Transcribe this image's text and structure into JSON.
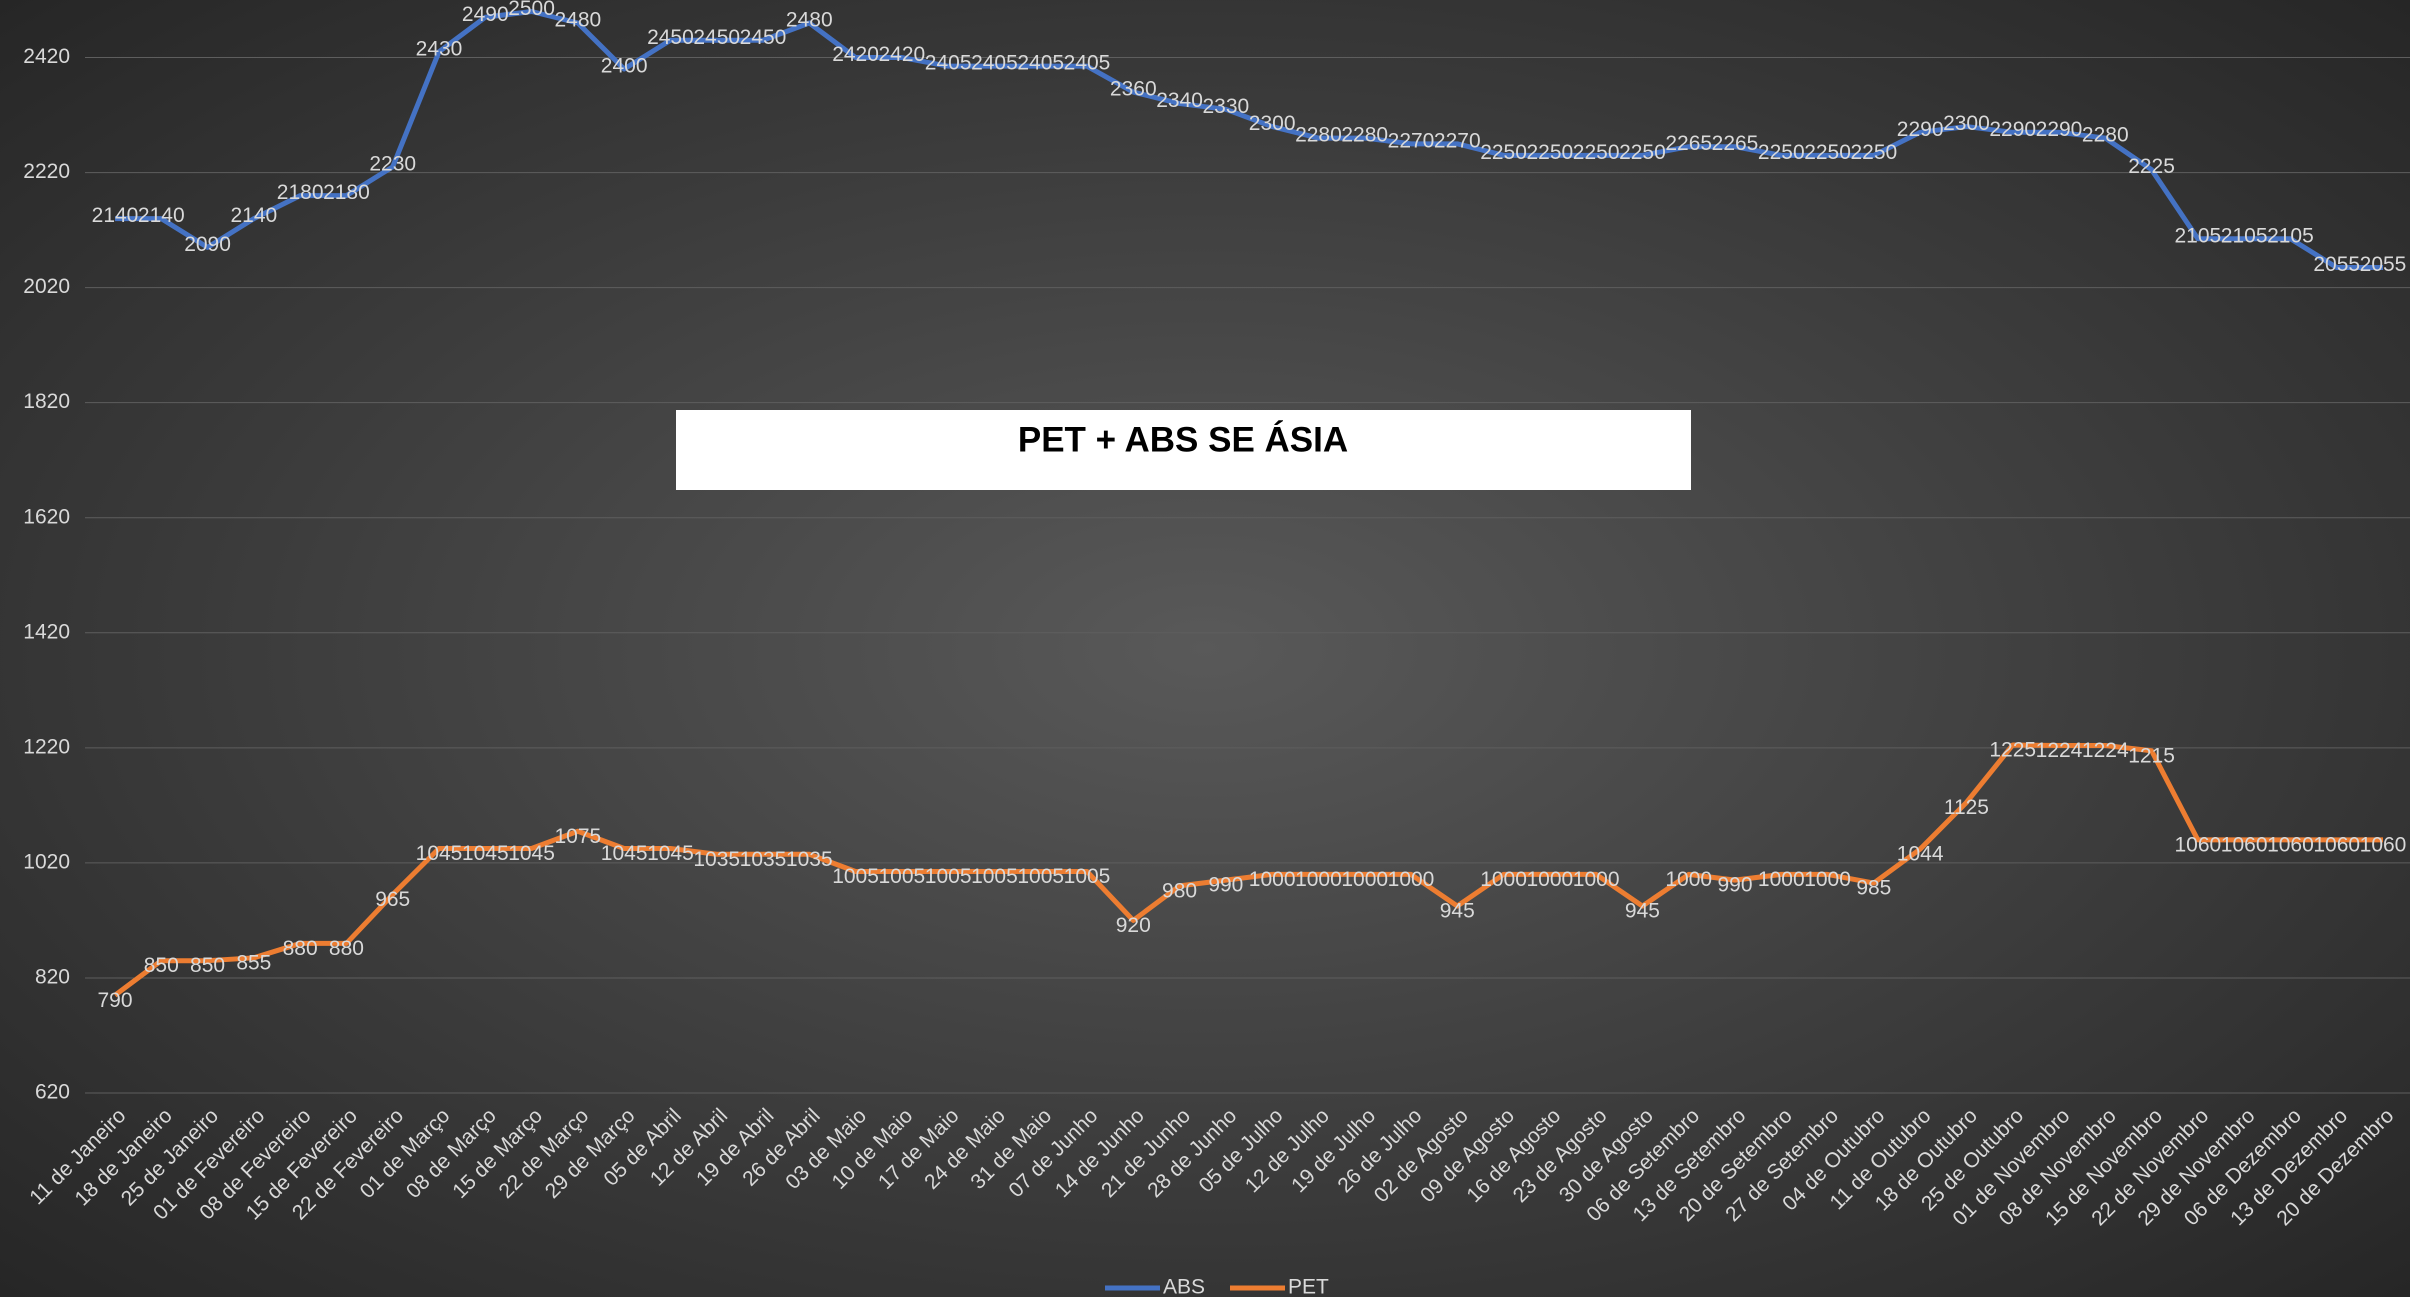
{
  "chart_data": {
    "type": "line",
    "title": "PET + ABS SE ÁSIA",
    "categories": [
      "11 de Janeiro",
      "18 de Janeiro",
      "25 de Janeiro",
      "01 de Fevereiro",
      "08 de Fevereiro",
      "15 de Fevereiro",
      "22 de Fevereiro",
      "01 de Março",
      "08 de Março",
      "15 de Março",
      "22 de Março",
      "29 de Março",
      "05 de Abril",
      "12 de Abril",
      "19 de Abril",
      "26 de Abril",
      "03 de Maio",
      "10 de Maio",
      "17 de Maio",
      "24 de Maio",
      "31 de Maio",
      "07 de Junho",
      "14 de Junho",
      "21 de Junho",
      "28 de Junho",
      "05 de Julho",
      "12 de Julho",
      "19 de Julho",
      "26 de Julho",
      "02 de Agosto",
      "09 de Agosto",
      "16 de Agosto",
      "23 de Agosto",
      "30 de Agosto",
      "06 de Setembro",
      "13 de Setembro",
      "20 de Setembro",
      "27 de Setembro",
      "04 de Outubro",
      "11 de Outubro",
      "18 de Outubro",
      "25 de Outubro",
      "01 de Novembro",
      "08 de Novembro",
      "15 de Novembro",
      "22 de Novembro",
      "29 de Novembro",
      "06 de Dezembro",
      "13 de Dezembro",
      "20 de Dezembro"
    ],
    "series": [
      {
        "name": "ABS",
        "color": "#4472c4",
        "values": [
          2140,
          2140,
          2090,
          2140,
          2180,
          2180,
          2230,
          2430,
          2490,
          2500,
          2480,
          2400,
          2450,
          2450,
          2450,
          2480,
          2420,
          2420,
          2405,
          2405,
          2405,
          2405,
          2360,
          2340,
          2330,
          2300,
          2280,
          2280,
          2270,
          2270,
          2250,
          2250,
          2250,
          2250,
          2265,
          2265,
          2250,
          2250,
          2250,
          2290,
          2300,
          2290,
          2290,
          2280,
          2225,
          2105,
          2105,
          2105,
          2055,
          2055
        ]
      },
      {
        "name": "PET",
        "color": "#ed7d31",
        "values": [
          790,
          850,
          850,
          855,
          880,
          880,
          965,
          1045,
          1045,
          1045,
          1075,
          1045,
          1045,
          1035,
          1035,
          1035,
          1005,
          1005,
          1005,
          1005,
          1005,
          1005,
          920,
          980,
          990,
          1000,
          1000,
          1000,
          1000,
          945,
          1000,
          1000,
          1000,
          945,
          1000,
          990,
          1000,
          1000,
          985,
          1044,
          1125,
          1225,
          1224,
          1224,
          1215,
          1060,
          1060,
          1060,
          1060,
          1060
        ]
      }
    ],
    "ylim": [
      620,
      2520
    ],
    "yticks": [
      620,
      820,
      1020,
      1220,
      1420,
      1620,
      1820,
      2020,
      2220,
      2420
    ],
    "grid": true,
    "legend": "bottom"
  }
}
